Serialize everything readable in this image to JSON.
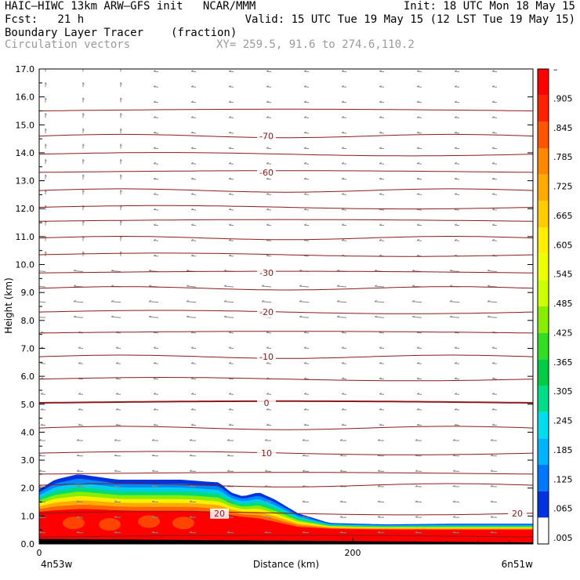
{
  "header": {
    "line1_left": "HAIC–HIWC 13km ARW–GFS init   NCAR/MMM",
    "line1_right": "Init: 18 UTC Mon 18 May 15",
    "line2_left": "Fcst:   21 h",
    "line2_right": "Valid: 15 UTC Tue 19 May 15 (12 LST Tue 19 May 15)",
    "field_name": "Boundary Layer Tracer",
    "field_units": "(fraction)",
    "vector_name": "Circulation vectors",
    "xy_range": "XY= 259.5, 91.6 to 274.6,110.2"
  },
  "chart_data": {
    "type": "heatmap",
    "xlabel": "Distance (km)",
    "ylabel": "Height (km)",
    "x_left_label": "4n53w",
    "x_right_label": "6n51w",
    "xlim": [
      0,
      315
    ],
    "ylim": [
      0,
      17
    ],
    "x_ticks": [
      {
        "value": 0,
        "label": "0"
      },
      {
        "value": 200,
        "label": "200"
      }
    ],
    "y_ticks": [
      "0.0",
      "1.0",
      "2.0",
      "3.0",
      "4.0",
      "5.0",
      "6.0",
      "7.0",
      "8.0",
      "9.0",
      "10.0",
      "11.0",
      "12.0",
      "13.0",
      "14.0",
      "15.0",
      "16.0",
      "17.0"
    ],
    "colorbar": {
      "labels": [
        ".005",
        ".065",
        ".125",
        ".185",
        ".245",
        ".305",
        ".365",
        ".425",
        ".485",
        ".545",
        ".605",
        ".665",
        ".725",
        ".785",
        ".845",
        ".905",
        "–"
      ],
      "colors": [
        "#ffffff",
        "#0033dd",
        "#0077ff",
        "#00b4ff",
        "#00ddee",
        "#00dd88",
        "#00cc44",
        "#33dd22",
        "#88ee00",
        "#ccff00",
        "#eeff00",
        "#ffee00",
        "#ffcc00",
        "#ffaa00",
        "#ff8800",
        "#ff5500",
        "#ff2200",
        "#ff0000"
      ]
    },
    "tracer_top_boundary_km": [
      {
        "x": 0,
        "y": 1.95
      },
      {
        "x": 10,
        "y": 2.3
      },
      {
        "x": 25,
        "y": 2.5
      },
      {
        "x": 50,
        "y": 2.3
      },
      {
        "x": 90,
        "y": 2.3
      },
      {
        "x": 115,
        "y": 2.2
      },
      {
        "x": 122,
        "y": 1.85
      },
      {
        "x": 130,
        "y": 1.7
      },
      {
        "x": 140,
        "y": 1.85
      },
      {
        "x": 150,
        "y": 1.6
      },
      {
        "x": 165,
        "y": 1.1
      },
      {
        "x": 185,
        "y": 0.75
      },
      {
        "x": 220,
        "y": 0.7
      },
      {
        "x": 260,
        "y": 0.72
      },
      {
        "x": 315,
        "y": 0.72
      }
    ],
    "tracer_core_boundary_km": [
      {
        "x": 0,
        "y": 1.05
      },
      {
        "x": 30,
        "y": 1.1
      },
      {
        "x": 60,
        "y": 1.05
      },
      {
        "x": 100,
        "y": 1.05
      },
      {
        "x": 120,
        "y": 0.95
      },
      {
        "x": 140,
        "y": 0.8
      },
      {
        "x": 165,
        "y": 0.55
      },
      {
        "x": 200,
        "y": 0.5
      },
      {
        "x": 260,
        "y": 0.48
      },
      {
        "x": 315,
        "y": 0.48
      }
    ],
    "temperature_contours": [
      {
        "level": "-70",
        "y": 14.6
      },
      {
        "level": "-60",
        "y": 13.3
      },
      {
        "level": "-30",
        "y": 9.7
      },
      {
        "level": "-20",
        "y": 8.3
      },
      {
        "level": "-10",
        "y": 6.7
      },
      {
        "level": "0",
        "y": 5.05
      },
      {
        "level": "10",
        "y": 3.25
      },
      {
        "level": "20",
        "y": 1.1
      }
    ],
    "contour_lines_km": [
      0.25,
      1.1,
      2.1,
      2.5,
      3.25,
      4.15,
      5.05,
      5.9,
      6.7,
      7.55,
      8.3,
      9.15,
      9.7,
      10.35,
      10.95,
      11.55,
      12.05,
      12.65,
      13.3,
      13.95,
      14.6,
      15.5
    ]
  }
}
